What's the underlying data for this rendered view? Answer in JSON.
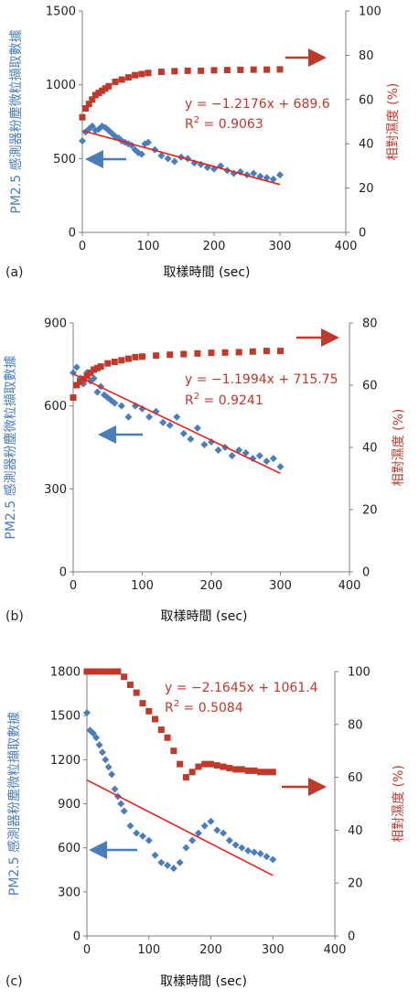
{
  "colors": {
    "blue": "#4a7ebb",
    "red": "#c0392b",
    "fit_line": "#e8201a",
    "axis": "#7f7f7f"
  },
  "chart_data": [
    {
      "panel_label": "(a)",
      "type": "scatter",
      "xlabel": "取樣時間 (sec)",
      "ylabel_left": "PM2.5 感測器粉塵微粒擷取數據",
      "ylabel_right": "相對濕度 (%)",
      "xlim": [
        0,
        400
      ],
      "ylim_left": [
        0,
        1500
      ],
      "ylim_right": [
        0,
        100
      ],
      "x_ticks": [
        "0",
        "100",
        "200",
        "300",
        "400"
      ],
      "y_ticks_left": [
        "0",
        "500",
        "1000",
        "1500"
      ],
      "y_ticks_right": [
        "0",
        "20",
        "40",
        "60",
        "80",
        "100"
      ],
      "series": [
        {
          "axis": "left",
          "color": "#4a7ebb",
          "marker": "diamond",
          "x": [
            0,
            5,
            10,
            15,
            20,
            25,
            30,
            35,
            40,
            45,
            50,
            55,
            60,
            65,
            70,
            75,
            80,
            85,
            90,
            95,
            100,
            110,
            120,
            130,
            140,
            150,
            160,
            170,
            180,
            190,
            200,
            210,
            220,
            230,
            240,
            250,
            260,
            270,
            280,
            290,
            300
          ],
          "y": [
            620,
            680,
            700,
            720,
            690,
            700,
            720,
            710,
            690,
            670,
            650,
            640,
            620,
            610,
            600,
            590,
            560,
            540,
            530,
            600,
            610,
            560,
            520,
            500,
            480,
            510,
            500,
            470,
            460,
            440,
            430,
            450,
            420,
            400,
            410,
            390,
            400,
            380,
            370,
            360,
            390
          ]
        },
        {
          "axis": "right",
          "color": "#c0392b",
          "marker": "square",
          "x": [
            0,
            5,
            10,
            15,
            20,
            25,
            30,
            35,
            40,
            50,
            60,
            70,
            80,
            90,
            100,
            120,
            140,
            160,
            180,
            200,
            220,
            240,
            260,
            280,
            300
          ],
          "y": [
            52,
            56,
            58,
            60,
            62,
            63,
            64,
            65,
            66,
            68,
            69,
            70,
            71,
            71.5,
            72,
            72.5,
            72.8,
            73,
            73,
            73.2,
            73.3,
            73.4,
            73.5,
            73.5,
            73.6
          ]
        }
      ],
      "fit": {
        "axis": "left",
        "slope": -1.2176,
        "intercept": 689.6,
        "x_range": [
          0,
          300
        ]
      },
      "equation": "y = −1.2176x + 689.6",
      "r2_prefix": "R",
      "r2_value": " = 0.9063"
    },
    {
      "panel_label": "(b)",
      "type": "scatter",
      "xlabel": "取樣時間 (sec)",
      "ylabel_left": "PM2.5 感測器粉塵微粒擷取數據",
      "ylabel_right": "相對濕度 (%)",
      "xlim": [
        0,
        400
      ],
      "ylim_left": [
        0,
        900
      ],
      "ylim_right": [
        0,
        80
      ],
      "x_ticks": [
        "0",
        "100",
        "200",
        "300",
        "400"
      ],
      "y_ticks_left": [
        "0",
        "300",
        "600",
        "900"
      ],
      "y_ticks_right": [
        "0",
        "20",
        "40",
        "60",
        "80"
      ],
      "series": [
        {
          "axis": "left",
          "color": "#4a7ebb",
          "marker": "diamond",
          "x": [
            0,
            5,
            10,
            15,
            20,
            25,
            30,
            35,
            40,
            45,
            50,
            55,
            60,
            70,
            80,
            90,
            100,
            110,
            120,
            130,
            140,
            150,
            160,
            170,
            180,
            190,
            200,
            210,
            220,
            230,
            240,
            250,
            260,
            270,
            280,
            290,
            300
          ],
          "y": [
            720,
            740,
            700,
            680,
            720,
            690,
            700,
            650,
            670,
            640,
            630,
            620,
            610,
            600,
            560,
            600,
            590,
            560,
            580,
            540,
            530,
            560,
            500,
            480,
            520,
            460,
            470,
            440,
            450,
            420,
            440,
            430,
            410,
            420,
            400,
            410,
            380
          ]
        },
        {
          "axis": "right",
          "color": "#c0392b",
          "marker": "square",
          "x": [
            0,
            5,
            10,
            15,
            20,
            25,
            30,
            35,
            40,
            50,
            60,
            70,
            80,
            90,
            100,
            120,
            140,
            160,
            180,
            200,
            220,
            240,
            260,
            280,
            300
          ],
          "y": [
            56,
            60,
            61,
            62,
            63,
            64,
            65,
            65.5,
            66,
            67,
            67.5,
            68,
            68.5,
            69,
            69.2,
            69.5,
            69.8,
            70,
            70.2,
            70.4,
            70.5,
            70.6,
            70.8,
            71,
            71
          ]
        }
      ],
      "fit": {
        "axis": "left",
        "slope": -1.1994,
        "intercept": 715.75,
        "x_range": [
          0,
          300
        ]
      },
      "equation": "y = −1.1994x + 715.75",
      "r2_prefix": "R",
      "r2_value": " = 0.9241"
    },
    {
      "panel_label": "(c)",
      "type": "scatter",
      "xlabel": "取樣時間 (sec)",
      "ylabel_left": "PM2.5 感測器粉塵微粒擷取數據",
      "ylabel_right": "相對濕度 (%)",
      "xlim": [
        0,
        400
      ],
      "ylim_left": [
        0,
        1800
      ],
      "ylim_right": [
        0,
        100
      ],
      "x_ticks": [
        "0",
        "100",
        "200",
        "300",
        "400"
      ],
      "y_ticks_left": [
        "0",
        "300",
        "600",
        "900",
        "1200",
        "1500",
        "1800"
      ],
      "y_ticks_right": [
        "0",
        "20",
        "40",
        "60",
        "80",
        "100"
      ],
      "series": [
        {
          "axis": "left",
          "color": "#4a7ebb",
          "marker": "diamond",
          "x": [
            0,
            5,
            10,
            15,
            20,
            25,
            30,
            35,
            40,
            45,
            50,
            55,
            60,
            70,
            80,
            90,
            100,
            110,
            120,
            130,
            140,
            150,
            160,
            170,
            180,
            190,
            200,
            210,
            220,
            230,
            240,
            250,
            260,
            270,
            280,
            290,
            300
          ],
          "y": [
            1520,
            1400,
            1380,
            1350,
            1300,
            1250,
            1200,
            1150,
            1100,
            1000,
            950,
            900,
            850,
            750,
            700,
            680,
            650,
            550,
            500,
            480,
            460,
            500,
            600,
            650,
            700,
            750,
            780,
            720,
            700,
            650,
            620,
            600,
            580,
            570,
            560,
            540,
            520
          ]
        },
        {
          "axis": "right",
          "color": "#c0392b",
          "marker": "square",
          "x": [
            0,
            10,
            20,
            30,
            40,
            50,
            60,
            70,
            80,
            90,
            100,
            110,
            120,
            130,
            140,
            150,
            160,
            170,
            180,
            190,
            200,
            210,
            220,
            230,
            240,
            250,
            260,
            270,
            280,
            290,
            300
          ],
          "y": [
            100,
            100,
            100,
            100,
            100,
            100,
            98,
            95,
            92,
            88,
            85,
            82,
            78,
            75,
            70,
            65,
            60,
            62,
            64,
            65,
            65,
            64.5,
            64,
            63.5,
            63,
            63,
            62.5,
            62.5,
            62,
            62,
            62
          ]
        }
      ],
      "fit": {
        "axis": "left",
        "slope": -2.1645,
        "intercept": 1061.4,
        "x_range": [
          0,
          300
        ]
      },
      "equation": "y = −2.1645x + 1061.4",
      "r2_prefix": "R",
      "r2_value": " = 0.5084"
    }
  ]
}
